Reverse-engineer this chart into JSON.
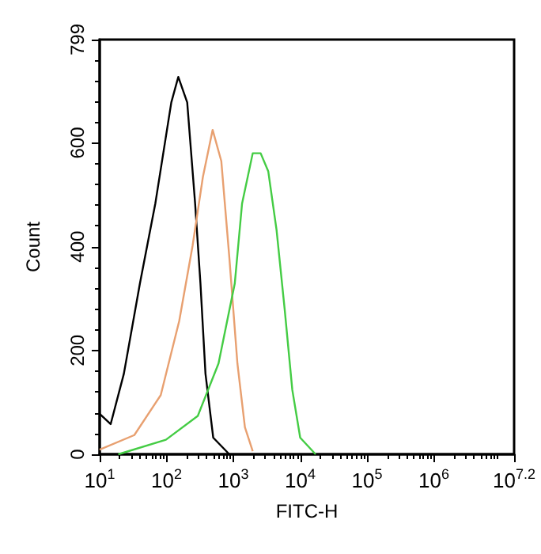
{
  "chart_data": {
    "type": "line",
    "xlabel": "FITC-H",
    "ylabel": "Count",
    "log": "x",
    "marker": "none",
    "line_style": "solid",
    "grid": false,
    "xlim": [
      10,
      15848932
    ],
    "xticks": [
      {
        "value": 10,
        "label": "10$^{1}$"
      },
      {
        "value": 100,
        "label": "10$^{2}$"
      },
      {
        "value": 1000,
        "label": "10$^{3}$"
      },
      {
        "value": 10000,
        "label": "10$^{4}$"
      },
      {
        "value": 100000,
        "label": "10$^{5}$"
      },
      {
        "value": 1000000,
        "label": "10$^{6}$"
      },
      {
        "value": 15848932,
        "label": "10$^{7.2}$"
      }
    ],
    "ylim": [
      0,
      799
    ],
    "yticks": [
      0,
      200,
      400,
      600,
      799
    ],
    "series": [
      {
        "color": "#000000",
        "x": [
          10,
          14.6,
          23,
          40,
          68,
          118,
          150,
          204,
          268,
          322,
          383,
          500,
          870
        ],
        "values": [
          78,
          58,
          155,
          329,
          483,
          678,
          727,
          678,
          483,
          329,
          155,
          32,
          0
        ]
      },
      {
        "color": "#e8a070",
        "x": [
          10,
          33,
          82,
          155,
          245,
          350,
          490,
          660,
          870,
          1150,
          1490,
          1950
        ],
        "values": [
          9,
          37,
          114,
          257,
          401,
          534,
          625,
          565,
          380,
          175,
          52,
          6
        ]
      },
      {
        "color": "#44cc44",
        "x": [
          19,
          98,
          294,
          600,
          1050,
          1350,
          1950,
          2560,
          3330,
          4430,
          5870,
          7620,
          10000,
          17000
        ],
        "values": [
          0,
          28,
          74,
          175,
          329,
          483,
          580,
          580,
          545,
          432,
          278,
          124,
          32,
          0
        ]
      }
    ]
  }
}
